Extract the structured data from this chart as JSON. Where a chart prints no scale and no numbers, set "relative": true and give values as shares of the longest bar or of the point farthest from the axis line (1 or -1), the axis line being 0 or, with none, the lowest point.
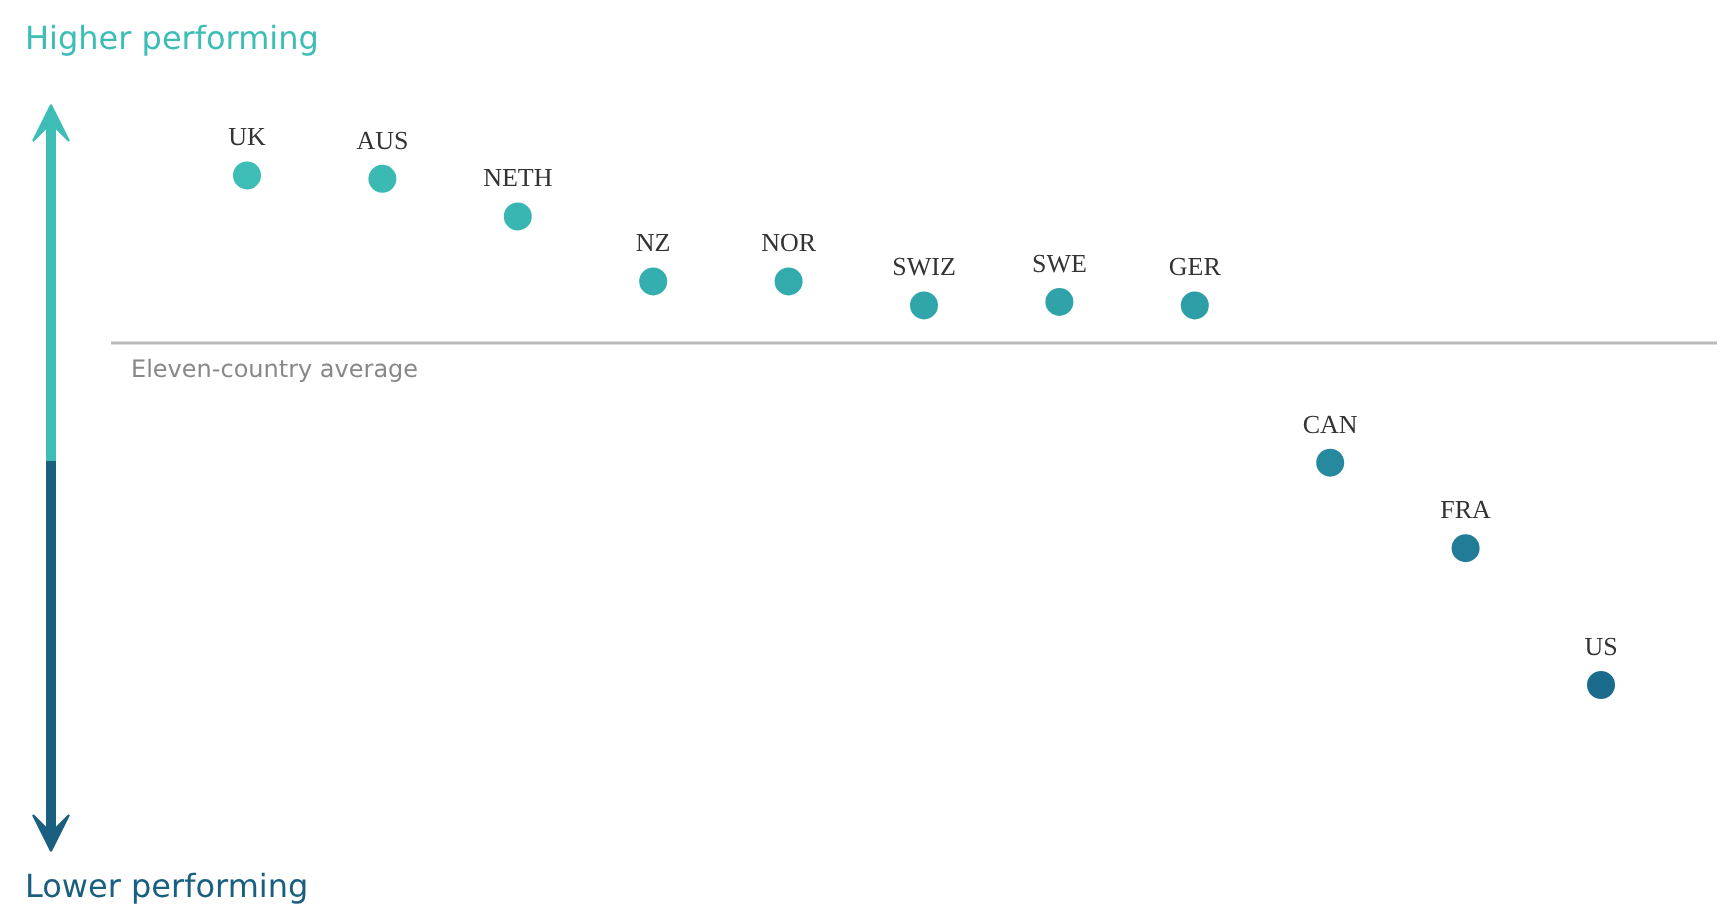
{
  "chart_data": {
    "type": "scatter",
    "relative": true,
    "marker": "circle",
    "categories": [
      "UK",
      "AUS",
      "NETH",
      "NZ",
      "NOR",
      "SWIZ",
      "SWE",
      "GER",
      "CAN",
      "FRA",
      "US"
    ],
    "values": [
      0.49,
      0.48,
      0.37,
      0.18,
      0.18,
      0.11,
      0.12,
      0.11,
      -0.35,
      -0.6,
      -1
    ],
    "colors": [
      "#3dbdb6",
      "#3bbab4",
      "#39b6b2",
      "#34aeae",
      "#33abad",
      "#30a6aa",
      "#2fa3a8",
      "#2d9ea6",
      "#26899e",
      "#217c97",
      "#1b6b8c"
    ],
    "ref_lines": [
      {
        "axis": "y",
        "value": 0,
        "label": "Eleven-country average",
        "color": "#bbbbbb"
      }
    ],
    "annotations": [
      "Higher performing",
      "Lower performing"
    ]
  }
}
